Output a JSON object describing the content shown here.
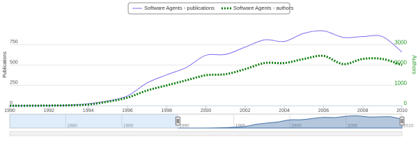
{
  "chart_data": {
    "type": "line",
    "x": [
      1990,
      1991,
      1992,
      1993,
      1994,
      1995,
      1996,
      1997,
      1998,
      1999,
      2000,
      2001,
      2002,
      2003,
      2004,
      2005,
      2006,
      2007,
      2008,
      2009,
      2010
    ],
    "series": [
      {
        "name": "Software Agents - publications",
        "color": "#7b6cf0",
        "line_style": "solid",
        "values": [
          0,
          1,
          2,
          8,
          25,
          60,
          120,
          280,
          380,
          470,
          620,
          630,
          720,
          810,
          790,
          890,
          920,
          840,
          850,
          850,
          660
        ]
      },
      {
        "name": "Software Agents - authors",
        "color": "#0a7a0a",
        "line_style": "dotted",
        "axis": "y2",
        "values": [
          0,
          3,
          10,
          20,
          60,
          200,
          400,
          750,
          1000,
          1250,
          1500,
          1550,
          1800,
          2100,
          2100,
          2300,
          2450,
          2050,
          2300,
          2300,
          2000
        ]
      }
    ],
    "y_label": "Publications",
    "y2_label": "Authors",
    "y2_color": "#2a9a2a",
    "xlim": [
      1990,
      2010
    ],
    "xticks": [
      1990,
      1992,
      1994,
      1996,
      1998,
      2000,
      2002,
      2004,
      2006,
      2008,
      2010
    ],
    "ylim": [
      0,
      1000
    ],
    "yticks": [
      0,
      250,
      500,
      750
    ],
    "y2lim": [
      0,
      4000
    ],
    "y2ticks": [
      0,
      1000,
      2000,
      3000
    ],
    "grid": true,
    "legend": "top",
    "navigator": {
      "xlim": [
        1975,
        2010
      ],
      "xticks": [
        1980,
        1985,
        1990,
        1995,
        2000,
        2005,
        2010
      ],
      "selection": [
        1990,
        2010
      ],
      "color": "#4572a7"
    }
  }
}
